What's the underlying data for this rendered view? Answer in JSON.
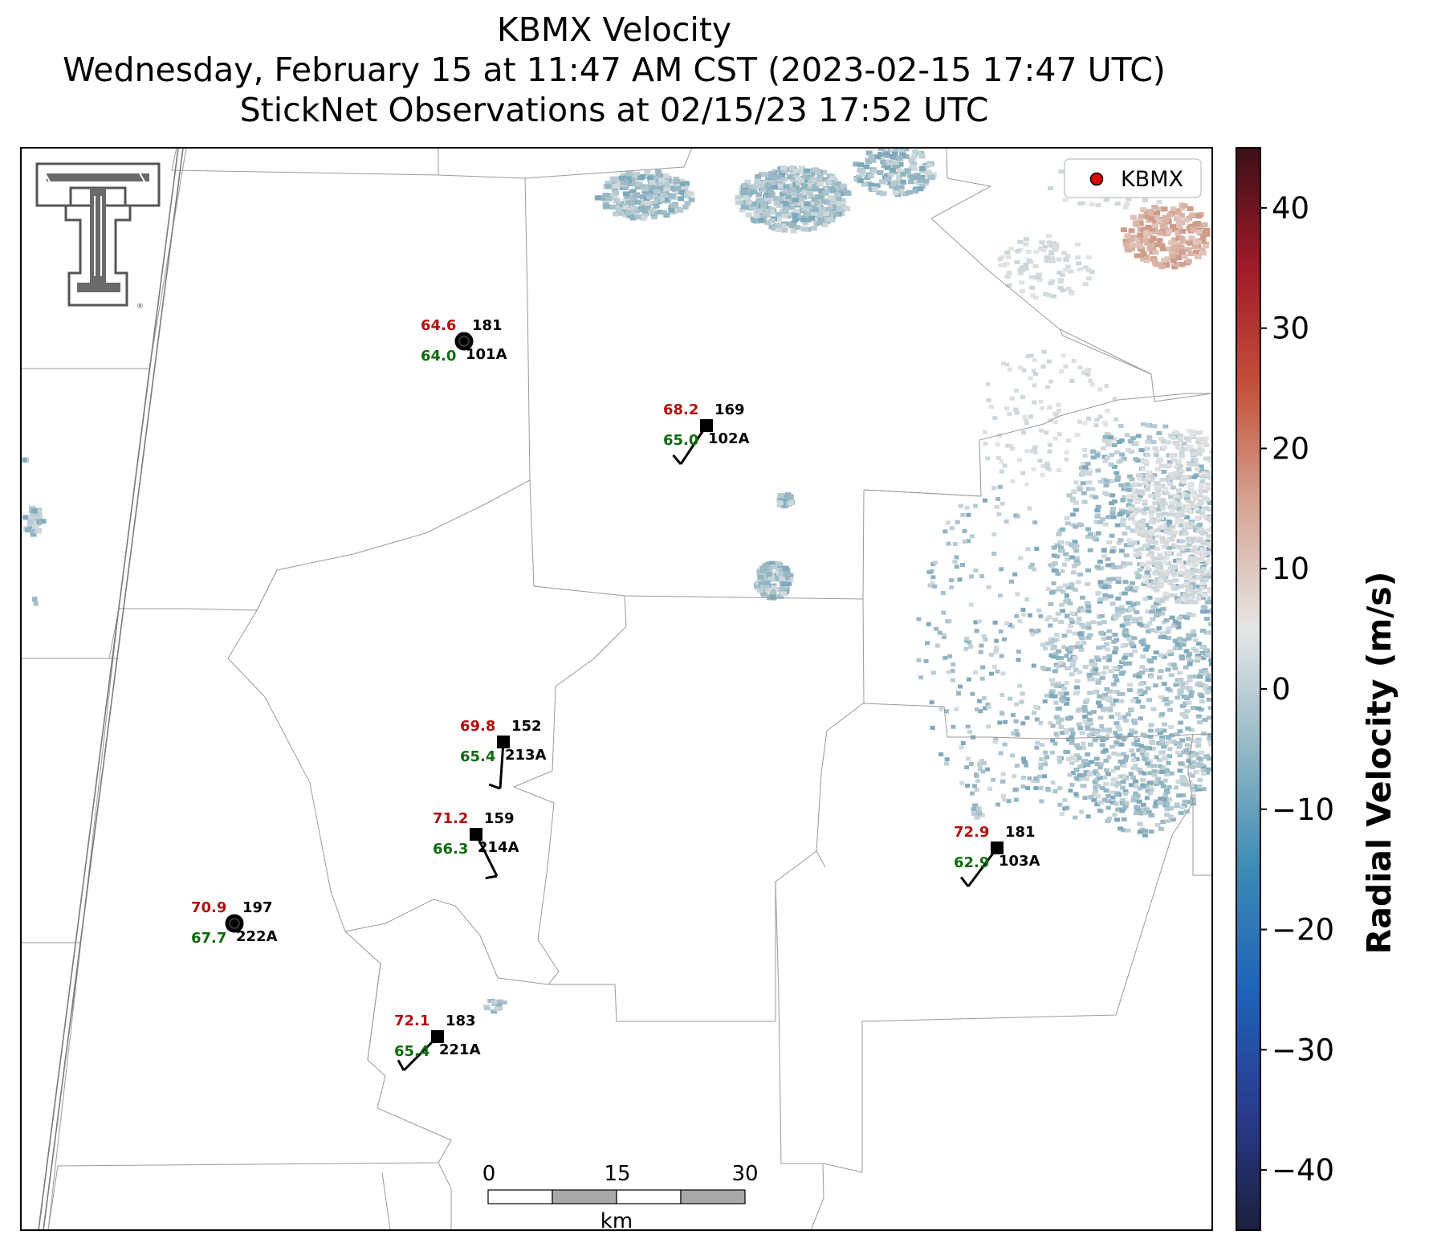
{
  "title": {
    "line1": "KBMX Velocity",
    "line2": "Wednesday, February 15 at 11:47 AM CST (2023-02-15 17:47 UTC)",
    "line3": "StickNet Observations at 02/15/23 17:52 UTC"
  },
  "legend": {
    "label": "KBMX",
    "marker_color": "#e00000"
  },
  "logo": {
    "name": "Texas Tech Double T",
    "color": "#555555"
  },
  "colorbar": {
    "label": "Radial Velocity (m/s)",
    "min": -45,
    "max": 45,
    "ticks": [
      {
        "value": 40,
        "label": "40"
      },
      {
        "value": 30,
        "label": "30"
      },
      {
        "value": 20,
        "label": "20"
      },
      {
        "value": 10,
        "label": "10"
      },
      {
        "value": 0,
        "label": "0"
      },
      {
        "value": -10,
        "label": "−10"
      },
      {
        "value": -20,
        "label": "−20"
      },
      {
        "value": -30,
        "label": "−30"
      },
      {
        "value": -40,
        "label": "−40"
      }
    ],
    "colors": [
      "#1a1f3d",
      "#2a3b8f",
      "#1d63b8",
      "#3b8ab6",
      "#93b8c6",
      "#e6e6e6",
      "#d7a795",
      "#c4523a",
      "#a01a2a",
      "#3c0f16"
    ]
  },
  "scale_bar": {
    "labels": [
      "0",
      "15",
      "30"
    ],
    "unit": "km"
  },
  "stations": [
    {
      "id": "101A",
      "temp": "64.6",
      "dew": "64.0",
      "dir": "181",
      "marker": "circle"
    },
    {
      "id": "102A",
      "temp": "68.2",
      "dew": "65.0",
      "dir": "169",
      "marker": "square"
    },
    {
      "id": "213A",
      "temp": "69.8",
      "dew": "65.4",
      "dir": "152",
      "marker": "square"
    },
    {
      "id": "214A",
      "temp": "71.2",
      "dew": "66.3",
      "dir": "159",
      "marker": "square"
    },
    {
      "id": "222A",
      "temp": "70.9",
      "dew": "67.7",
      "dir": "197",
      "marker": "circle"
    },
    {
      "id": "221A",
      "temp": "72.1",
      "dew": "65.4",
      "dir": "183",
      "marker": "square"
    },
    {
      "id": "103A",
      "temp": "72.9",
      "dew": "62.9",
      "dir": "181",
      "marker": "square"
    }
  ]
}
